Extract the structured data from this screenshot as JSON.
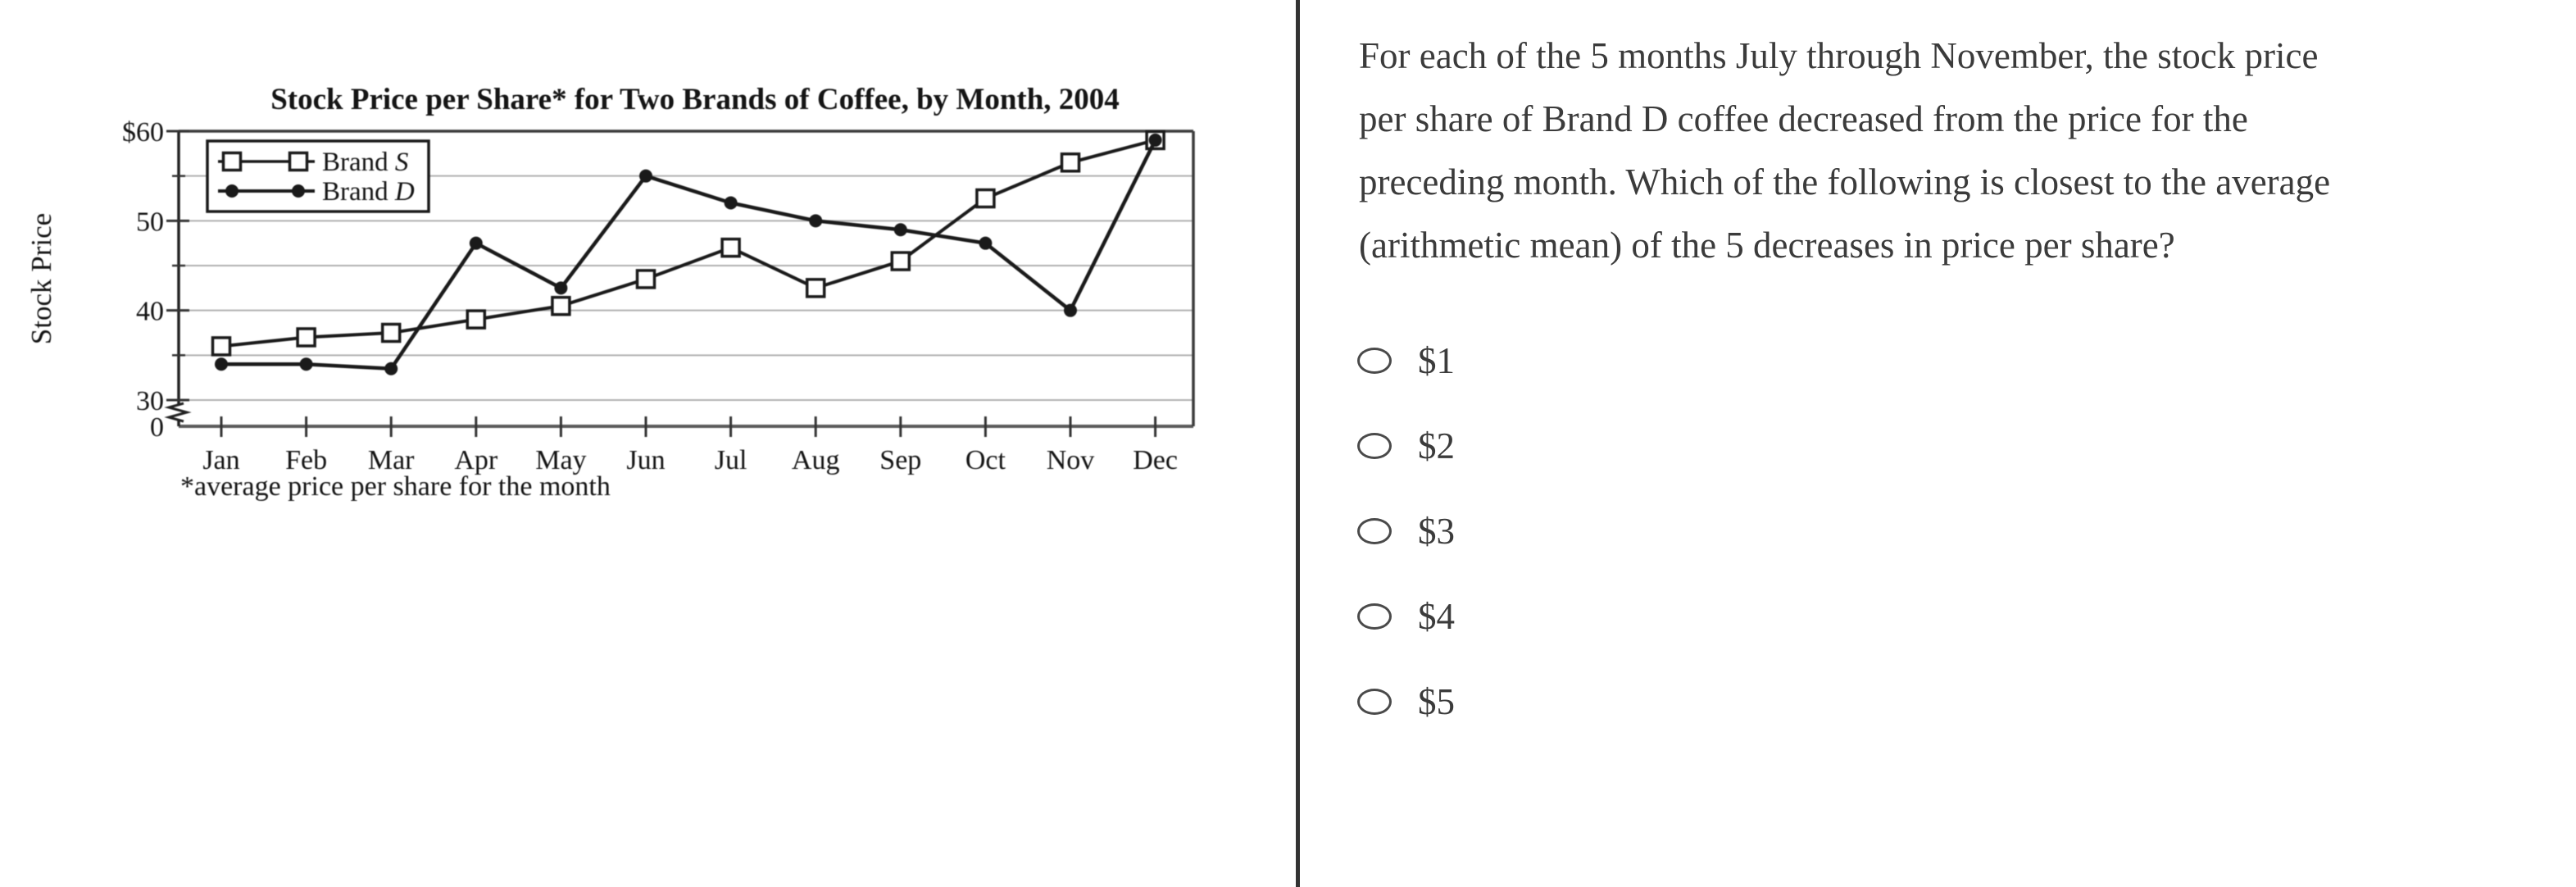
{
  "panel_divider": {
    "color": "#333333"
  },
  "chart_data": {
    "type": "line",
    "title": "Stock Price per Share* for Two Brands of Coffee, by Month, 2004",
    "ylabel": "Stock Price",
    "footnote": "*average price per share for the month",
    "categories": [
      "Jan",
      "Feb",
      "Mar",
      "Apr",
      "May",
      "Jun",
      "Jul",
      "Aug",
      "Sep",
      "Oct",
      "Nov",
      "Dec"
    ],
    "y_axis": {
      "tick_labels": [
        "$60",
        "50",
        "40",
        "30",
        "0"
      ],
      "tick_values": [
        60,
        50,
        40,
        30,
        0
      ],
      "minor_tick_values": [
        55,
        45,
        35
      ],
      "axis_break_between": [
        30,
        0
      ],
      "display_range": [
        30,
        60
      ]
    },
    "grid": true,
    "legend_position": "top-left",
    "series": [
      {
        "name": "Brand S",
        "name_prefix": "Brand ",
        "name_italic": "S",
        "marker": "open-square",
        "values": [
          36,
          37,
          37.5,
          39,
          40.5,
          43.5,
          47,
          42.5,
          45.5,
          52.5,
          56.5,
          59
        ]
      },
      {
        "name": "Brand D",
        "name_prefix": "Brand ",
        "name_italic": "D",
        "marker": "filled-circle",
        "values": [
          34,
          34,
          33.5,
          47.5,
          42.5,
          55,
          52,
          50,
          49,
          47.5,
          40,
          59
        ]
      }
    ]
  },
  "question": {
    "lines": [
      "For each of the 5 months July through November, the stock price",
      "per share of Brand D coffee decreased from the price for the",
      "preceding month. Which of the following is closest to the average",
      "(arithmetic mean) of the 5 decreases in price per share?"
    ]
  },
  "options": [
    {
      "label": "$1"
    },
    {
      "label": "$2"
    },
    {
      "label": "$3"
    },
    {
      "label": "$4"
    },
    {
      "label": "$5"
    }
  ]
}
